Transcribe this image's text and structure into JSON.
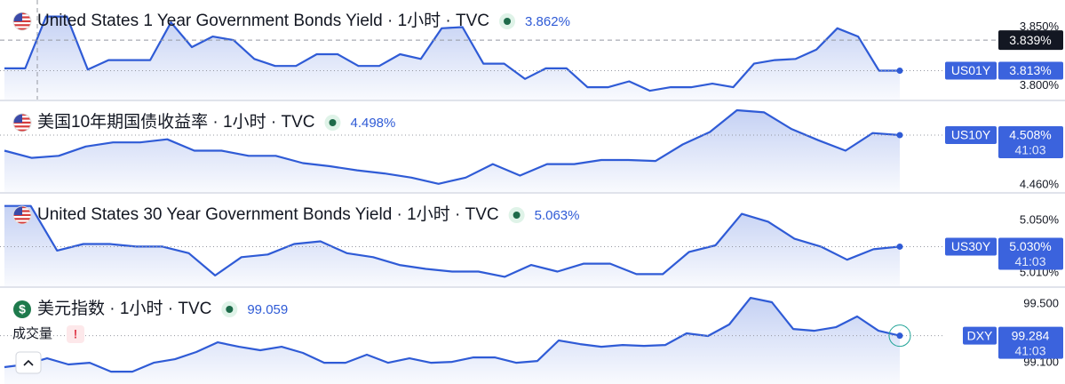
{
  "chart_data": [
    {
      "type": "area",
      "title": "United States 1 Year Government Bonds Yield · 1小时 · TVC",
      "icon": "us",
      "header_value": {
        "value": 3.862,
        "label": "3.862%"
      },
      "color": "#2f5bd6",
      "values": [
        3.815,
        3.815,
        3.859,
        3.859,
        3.814,
        3.822,
        3.822,
        3.822,
        3.854,
        3.833,
        3.842,
        3.839,
        3.823,
        3.817,
        3.817,
        3.827,
        3.827,
        3.817,
        3.817,
        3.827,
        3.823,
        3.849,
        3.85,
        3.819,
        3.819,
        3.806,
        3.815,
        3.815,
        3.799,
        3.799,
        3.804,
        3.796,
        3.799,
        3.799,
        3.802,
        3.799,
        3.819,
        3.822,
        3.823,
        3.831,
        3.849,
        3.842,
        3.813,
        3.813
      ],
      "ylim": [
        3.7885,
        3.873
      ],
      "yticks": [
        {
          "value": 3.85,
          "label": "3.850%"
        },
        {
          "value": 3.8,
          "label": "3.800%"
        }
      ],
      "ticker": "US01Y",
      "price_tag": {
        "value": 3.813,
        "label": "3.813%"
      },
      "crosshair": {
        "value": 3.839,
        "label": "3.839%"
      }
    },
    {
      "type": "area",
      "title": "美国10年期国债收益率 · 1小时 · TVC",
      "icon": "us",
      "header_value": {
        "value": 4.498,
        "label": "4.498%"
      },
      "color": "#2f5bd6",
      "values": [
        4.493,
        4.486,
        4.488,
        4.497,
        4.501,
        4.501,
        4.504,
        4.493,
        4.493,
        4.488,
        4.488,
        4.481,
        4.478,
        4.474,
        4.471,
        4.467,
        4.461,
        4.467,
        4.48,
        4.469,
        4.48,
        4.48,
        4.484,
        4.484,
        4.483,
        4.499,
        4.511,
        4.532,
        4.53,
        4.514,
        4.503,
        4.493,
        4.51,
        4.508
      ],
      "ylim": [
        4.4531,
        4.5406
      ],
      "yticks": [
        {
          "value": 4.46,
          "label": "4.460%"
        }
      ],
      "ticker": "US10Y",
      "price_tag": {
        "value": 4.508,
        "label": "4.508%"
      },
      "countdown": "41:03"
    },
    {
      "type": "area",
      "title": "United States 30 Year Government Bonds Yield · 1小时 · TVC",
      "icon": "us",
      "header_value": {
        "value": 5.063,
        "label": "5.063%"
      },
      "color": "#2f5bd6",
      "values": [
        5.061,
        5.061,
        5.027,
        5.032,
        5.032,
        5.03,
        5.03,
        5.025,
        5.008,
        5.022,
        5.024,
        5.032,
        5.034,
        5.025,
        5.022,
        5.016,
        5.013,
        5.011,
        5.011,
        5.007,
        5.016,
        5.011,
        5.017,
        5.017,
        5.009,
        5.009,
        5.026,
        5.031,
        5.055,
        5.049,
        5.036,
        5.03,
        5.02,
        5.028,
        5.03
      ],
      "ylim": [
        4.9998,
        5.0703
      ],
      "yticks": [
        {
          "value": 5.05,
          "label": "5.050%"
        },
        {
          "value": 5.01,
          "label": "5.010%"
        }
      ],
      "ticker": "US30Y",
      "price_tag": {
        "value": 5.03,
        "label": "5.030%"
      },
      "countdown": "41:03"
    },
    {
      "type": "area",
      "title": "美元指数 · 1小时 · TVC",
      "icon": "$",
      "header_value": {
        "value": 99.059,
        "label": "99.059"
      },
      "color": "#2f5bd6",
      "values": [
        99.07,
        99.088,
        99.13,
        99.088,
        99.1,
        99.039,
        99.039,
        99.1,
        99.124,
        99.173,
        99.239,
        99.209,
        99.185,
        99.209,
        99.167,
        99.1,
        99.1,
        99.155,
        99.1,
        99.13,
        99.1,
        99.106,
        99.136,
        99.136,
        99.1,
        99.112,
        99.252,
        99.227,
        99.209,
        99.221,
        99.215,
        99.221,
        99.3,
        99.282,
        99.361,
        99.542,
        99.512,
        99.33,
        99.318,
        99.342,
        99.415,
        99.318,
        99.284
      ],
      "ylim": [
        98.955,
        99.609
      ],
      "yticks": [
        {
          "value": 99.5,
          "label": "99.500"
        },
        {
          "value": 99.1,
          "label": "99.100"
        }
      ],
      "ticker": "DXY",
      "price_tag": {
        "value": 99.284,
        "label": "99.284"
      },
      "countdown": "41:03",
      "volume_label": "成交量",
      "warning": "!"
    }
  ]
}
